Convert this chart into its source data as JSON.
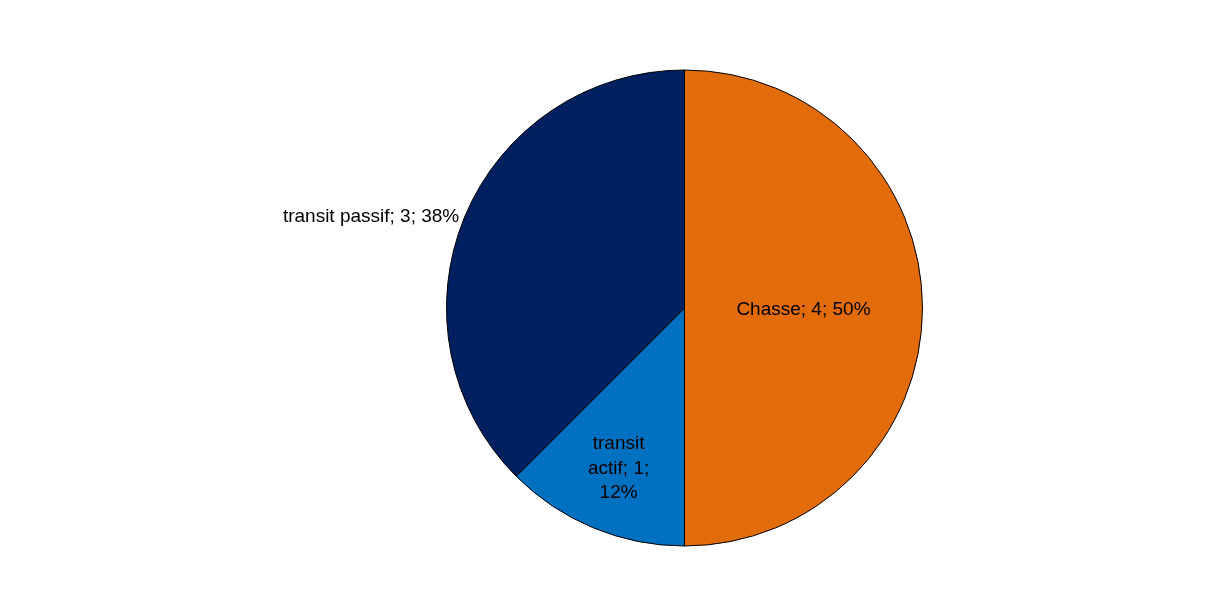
{
  "chart_data": {
    "type": "pie",
    "categories": [
      "Chasse; 4; 50%",
      "transit actif; 1; 12%",
      "transit passif; 3; 38%"
    ],
    "values": [
      4,
      1,
      3
    ],
    "colors": [
      "#e36c0a",
      "#0070c0",
      "#002060"
    ],
    "legend": false
  }
}
